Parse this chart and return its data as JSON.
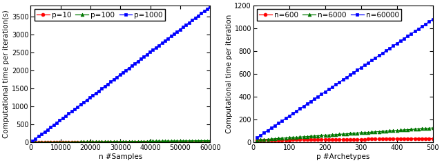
{
  "left": {
    "xlabel": "n #Samples",
    "ylabel": "Computational time per iteration(s)",
    "xlim": [
      0,
      60000
    ],
    "ylim": [
      0,
      3800
    ],
    "yticks": [
      0,
      500,
      1000,
      1500,
      2000,
      2500,
      3000,
      3500
    ],
    "xticks": [
      0,
      10000,
      20000,
      30000,
      40000,
      50000,
      60000
    ],
    "xtick_labels": [
      "0",
      "10000",
      "20000",
      "30000",
      "40000",
      "50000",
      "60000"
    ],
    "series": [
      {
        "label": "p=10",
        "color": "#ff0000",
        "marker": "o",
        "ms": 3.5,
        "x_start": 600,
        "x_end": 60000,
        "slope": 7e-05,
        "intercept": 0.5
      },
      {
        "label": "p=100",
        "color": "#007700",
        "marker": "^",
        "ms": 3.5,
        "x_start": 600,
        "x_end": 60000,
        "slope": 0.00085,
        "intercept": 1.0
      },
      {
        "label": "p=1000",
        "color": "#0000ff",
        "marker": "s",
        "ms": 3.5,
        "x_start": 600,
        "x_end": 60000,
        "slope": 0.0628,
        "intercept": 5.0
      }
    ],
    "n_points": 60
  },
  "right": {
    "xlabel": "p #Archetypes",
    "ylabel": "Computational time per iteration",
    "xlim": [
      0,
      500
    ],
    "ylim": [
      0,
      1200
    ],
    "yticks": [
      0,
      200,
      400,
      600,
      800,
      1000,
      1200
    ],
    "xticks": [
      0,
      100,
      200,
      300,
      400,
      500
    ],
    "xtick_labels": [
      "0",
      "100",
      "200",
      "300",
      "400",
      "500"
    ],
    "series": [
      {
        "label": "n=600",
        "color": "#ff0000",
        "marker": "o",
        "ms": 3.5,
        "x_start": 10,
        "x_end": 500,
        "slope": 0.028,
        "intercept": 20
      },
      {
        "label": "n=6000",
        "color": "#007700",
        "marker": "^",
        "ms": 3.5,
        "x_start": 10,
        "x_end": 500,
        "slope": 0.215,
        "intercept": 20
      },
      {
        "label": "n=60000",
        "color": "#0000ff",
        "marker": "s",
        "ms": 3.5,
        "x_start": 10,
        "x_end": 500,
        "slope": 2.12,
        "intercept": 20
      }
    ],
    "n_points": 50
  },
  "bg_color": "#ffffff",
  "legend_fontsize": 7.5,
  "tick_fontsize": 7,
  "label_fontsize": 7.5
}
